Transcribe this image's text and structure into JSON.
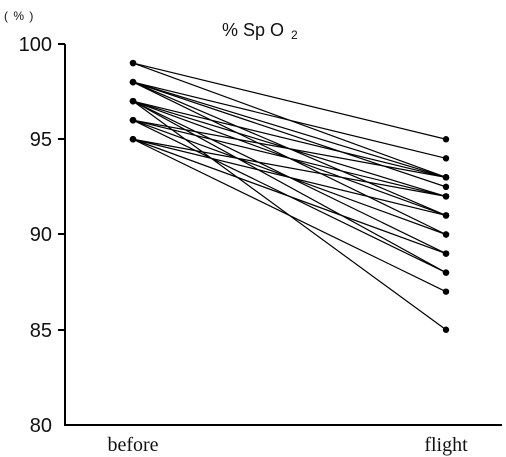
{
  "chart_data": {
    "type": "line",
    "title": "% Sp O",
    "title_subscript": "2",
    "ylabel": "( % )",
    "xlabel": "",
    "categories": [
      "before",
      "flight"
    ],
    "ylim": [
      80,
      100
    ],
    "yticks": [
      "100",
      "95",
      "90",
      "85",
      "80"
    ],
    "grid": false,
    "legend": "none",
    "line_color": "#000000",
    "series": [
      {
        "values": [
          99,
          95
        ]
      },
      {
        "values": [
          99,
          93
        ]
      },
      {
        "values": [
          98,
          94
        ]
      },
      {
        "values": [
          98,
          93
        ]
      },
      {
        "values": [
          98,
          92.5
        ]
      },
      {
        "values": [
          98,
          91
        ]
      },
      {
        "values": [
          98,
          90
        ]
      },
      {
        "values": [
          97,
          93
        ]
      },
      {
        "values": [
          97,
          92
        ]
      },
      {
        "values": [
          97,
          91
        ]
      },
      {
        "values": [
          97,
          89
        ]
      },
      {
        "values": [
          97,
          88
        ]
      },
      {
        "values": [
          97,
          85
        ]
      },
      {
        "values": [
          96,
          93
        ]
      },
      {
        "values": [
          96,
          92
        ]
      },
      {
        "values": [
          96,
          90
        ]
      },
      {
        "values": [
          96,
          88
        ]
      },
      {
        "values": [
          95,
          92
        ]
      },
      {
        "values": [
          95,
          91
        ]
      },
      {
        "values": [
          95,
          89
        ]
      },
      {
        "values": [
          95,
          87
        ]
      }
    ]
  }
}
